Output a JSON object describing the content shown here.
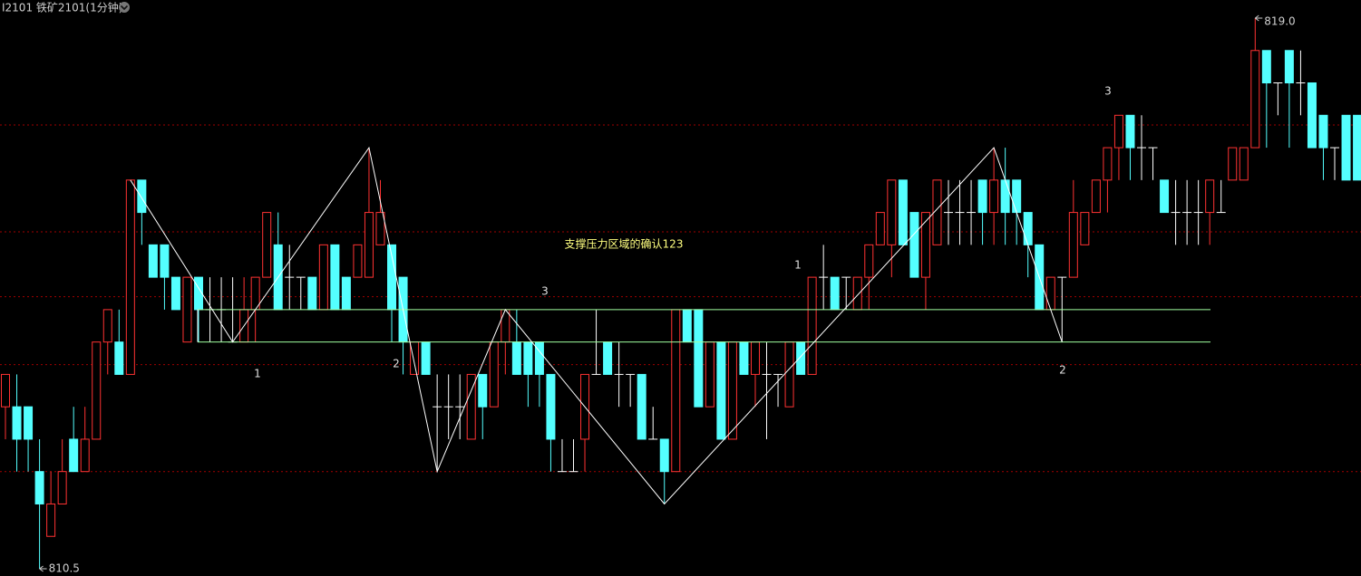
{
  "chart_data": {
    "type": "candlestick",
    "title": "I2101 铁矿2101(1分钟)",
    "up_color": "#ff3232",
    "down_color": "#54ffff",
    "doji_color": "#ffffff",
    "ylim": [
      810.5,
      819
    ],
    "grid": true,
    "grid_color": "#a00000",
    "grid_levels": [
      817.35,
      815.7,
      814.7,
      813.65,
      812
    ],
    "open": [
      813,
      813,
      813,
      812,
      811,
      811.5,
      812.5,
      812,
      812.5,
      814,
      814,
      813.5,
      816.5,
      815.5,
      815.5,
      815,
      814,
      815,
      814.5,
      814.5,
      814,
      814,
      814.5,
      815,
      815.5,
      815,
      815,
      815,
      814.5,
      815.5,
      815,
      815,
      815,
      815.5,
      815.5,
      815,
      813.5,
      814,
      813,
      813,
      813,
      812.5,
      813.5,
      813,
      814,
      814,
      814,
      814,
      813.5,
      812,
      812,
      812.5,
      813.5,
      814,
      813.5,
      813.5,
      813.5,
      812.5,
      812.5,
      812,
      814.5,
      814.5,
      813,
      814,
      812.5,
      814,
      813.5,
      813.5,
      813.5,
      813,
      814,
      813.5,
      815,
      815,
      815,
      814.5,
      815,
      815.5,
      815.5,
      816.5,
      816,
      815,
      815.5,
      816,
      816,
      816,
      816.5,
      816,
      816.5,
      816.5,
      816,
      815.5,
      814.5,
      815,
      815,
      815.5,
      816,
      816.5,
      817,
      817.5,
      817,
      817,
      816.5,
      816,
      816,
      816,
      816,
      816,
      816.5,
      816.5,
      817,
      818.5,
      818,
      818.5,
      818,
      818,
      817.5,
      817,
      817.5,
      817.5
    ],
    "high": [
      813.5,
      813.5,
      813,
      812.5,
      812,
      812.5,
      813,
      813,
      814,
      814.5,
      814.5,
      816.5,
      816.5,
      815.5,
      815.5,
      815,
      815,
      815,
      815,
      815,
      815,
      815,
      815,
      816,
      816,
      815.5,
      815,
      815,
      815.5,
      815.5,
      815,
      815.5,
      817,
      816.5,
      815.5,
      815,
      814,
      814,
      813.5,
      813.5,
      813.5,
      813.5,
      813.5,
      814,
      814.5,
      814.5,
      814,
      814,
      813.5,
      812.5,
      812.5,
      813.5,
      814.5,
      814,
      814,
      813.5,
      813.5,
      813,
      812.5,
      814.5,
      814.5,
      814.5,
      814,
      814,
      814,
      814,
      814,
      814,
      813.5,
      814,
      814,
      815,
      815.5,
      815,
      815,
      815,
      815.5,
      816,
      816.5,
      816.5,
      816,
      816,
      816.5,
      816.5,
      816.5,
      816.5,
      816.5,
      817,
      817,
      816.5,
      816,
      815.5,
      815,
      815,
      816.5,
      816,
      816.5,
      817,
      817.5,
      817.5,
      817.5,
      817,
      816.5,
      816.5,
      816.5,
      816.5,
      816.5,
      816.5,
      817,
      817,
      819,
      818.5,
      818,
      818.5,
      818.5,
      818,
      817.5,
      817,
      817.5,
      817.5
    ],
    "low": [
      812.5,
      812,
      812,
      810.5,
      811,
      811.5,
      812,
      812,
      812.5,
      813.5,
      813.5,
      813.5,
      815.5,
      815,
      814.5,
      814.5,
      814,
      814,
      814,
      814,
      814,
      814,
      814,
      815,
      814.5,
      814.5,
      814.5,
      814.5,
      814.5,
      814.5,
      814.5,
      815,
      815,
      815.5,
      814,
      813.5,
      813.5,
      813.5,
      812,
      812.5,
      812.5,
      812.5,
      812.5,
      813,
      813.5,
      813.5,
      813,
      813,
      812,
      812,
      812,
      812,
      813.5,
      813.5,
      813,
      813,
      812.5,
      812.5,
      811.5,
      812,
      814,
      813,
      813,
      812.5,
      812.5,
      813.5,
      813,
      812.5,
      813,
      813,
      813.5,
      813.5,
      814.5,
      814.5,
      814.5,
      814.5,
      814.5,
      815.5,
      815,
      815.5,
      815,
      814.5,
      815.5,
      815.5,
      815.5,
      815.5,
      815.5,
      815.5,
      815.5,
      815.5,
      815,
      814.5,
      814.5,
      814,
      815,
      815.5,
      816,
      816,
      816.5,
      816.5,
      816.5,
      816.5,
      816,
      815.5,
      815.5,
      815.5,
      815.5,
      816,
      816.5,
      816.5,
      817,
      817,
      817.5,
      817,
      817.5,
      817,
      816.5,
      816.5,
      816.5,
      816.5
    ],
    "close": [
      813.5,
      812.5,
      812.5,
      811.5,
      811.5,
      812,
      812,
      812.5,
      814,
      814.5,
      813.5,
      816.5,
      816,
      815,
      815,
      814.5,
      815,
      814.5,
      814.5,
      814.5,
      814,
      814.5,
      815,
      816,
      814.5,
      815,
      815,
      814.5,
      815.5,
      814.5,
      814.5,
      815.5,
      816,
      816,
      814.5,
      814,
      814,
      813.5,
      813,
      813,
      813,
      813.5,
      813,
      814,
      814.5,
      813.5,
      813.5,
      813.5,
      812.5,
      812,
      812,
      813.5,
      813.5,
      813.5,
      813.5,
      813.5,
      812.5,
      812.5,
      812,
      814.5,
      814,
      813,
      814,
      812.5,
      814,
      813.5,
      814,
      813.5,
      813.5,
      814,
      813.5,
      815,
      815,
      814.5,
      815,
      815,
      815.5,
      816,
      816.5,
      815.5,
      815,
      816,
      816.5,
      816,
      816,
      816,
      816,
      816.5,
      816,
      816,
      815.5,
      814.5,
      815,
      815,
      816,
      816,
      816.5,
      817,
      817.5,
      817,
      817,
      817,
      816,
      816,
      816,
      816,
      816.5,
      816,
      817,
      817,
      818.5,
      818,
      818,
      818,
      818,
      817,
      817,
      817,
      816.5,
      816.5
    ],
    "levels": [
      814.5,
      814
    ],
    "level_color": "#a0ffa0",
    "zigzag": {
      "x": [
        11,
        20,
        32,
        38,
        44,
        58,
        87,
        93
      ],
      "values": [
        816.5,
        814,
        817,
        812,
        814.5,
        811.5,
        817,
        814
      ],
      "color": "#ffffff"
    },
    "annotation": "支撑压力区域的确认123",
    "labels": [
      "1",
      "2",
      "3",
      "1",
      "2",
      "3"
    ],
    "high_marker": {
      "value": 819,
      "label": "819.0"
    },
    "low_marker": {
      "value": 810.5,
      "label": "810.5"
    }
  }
}
